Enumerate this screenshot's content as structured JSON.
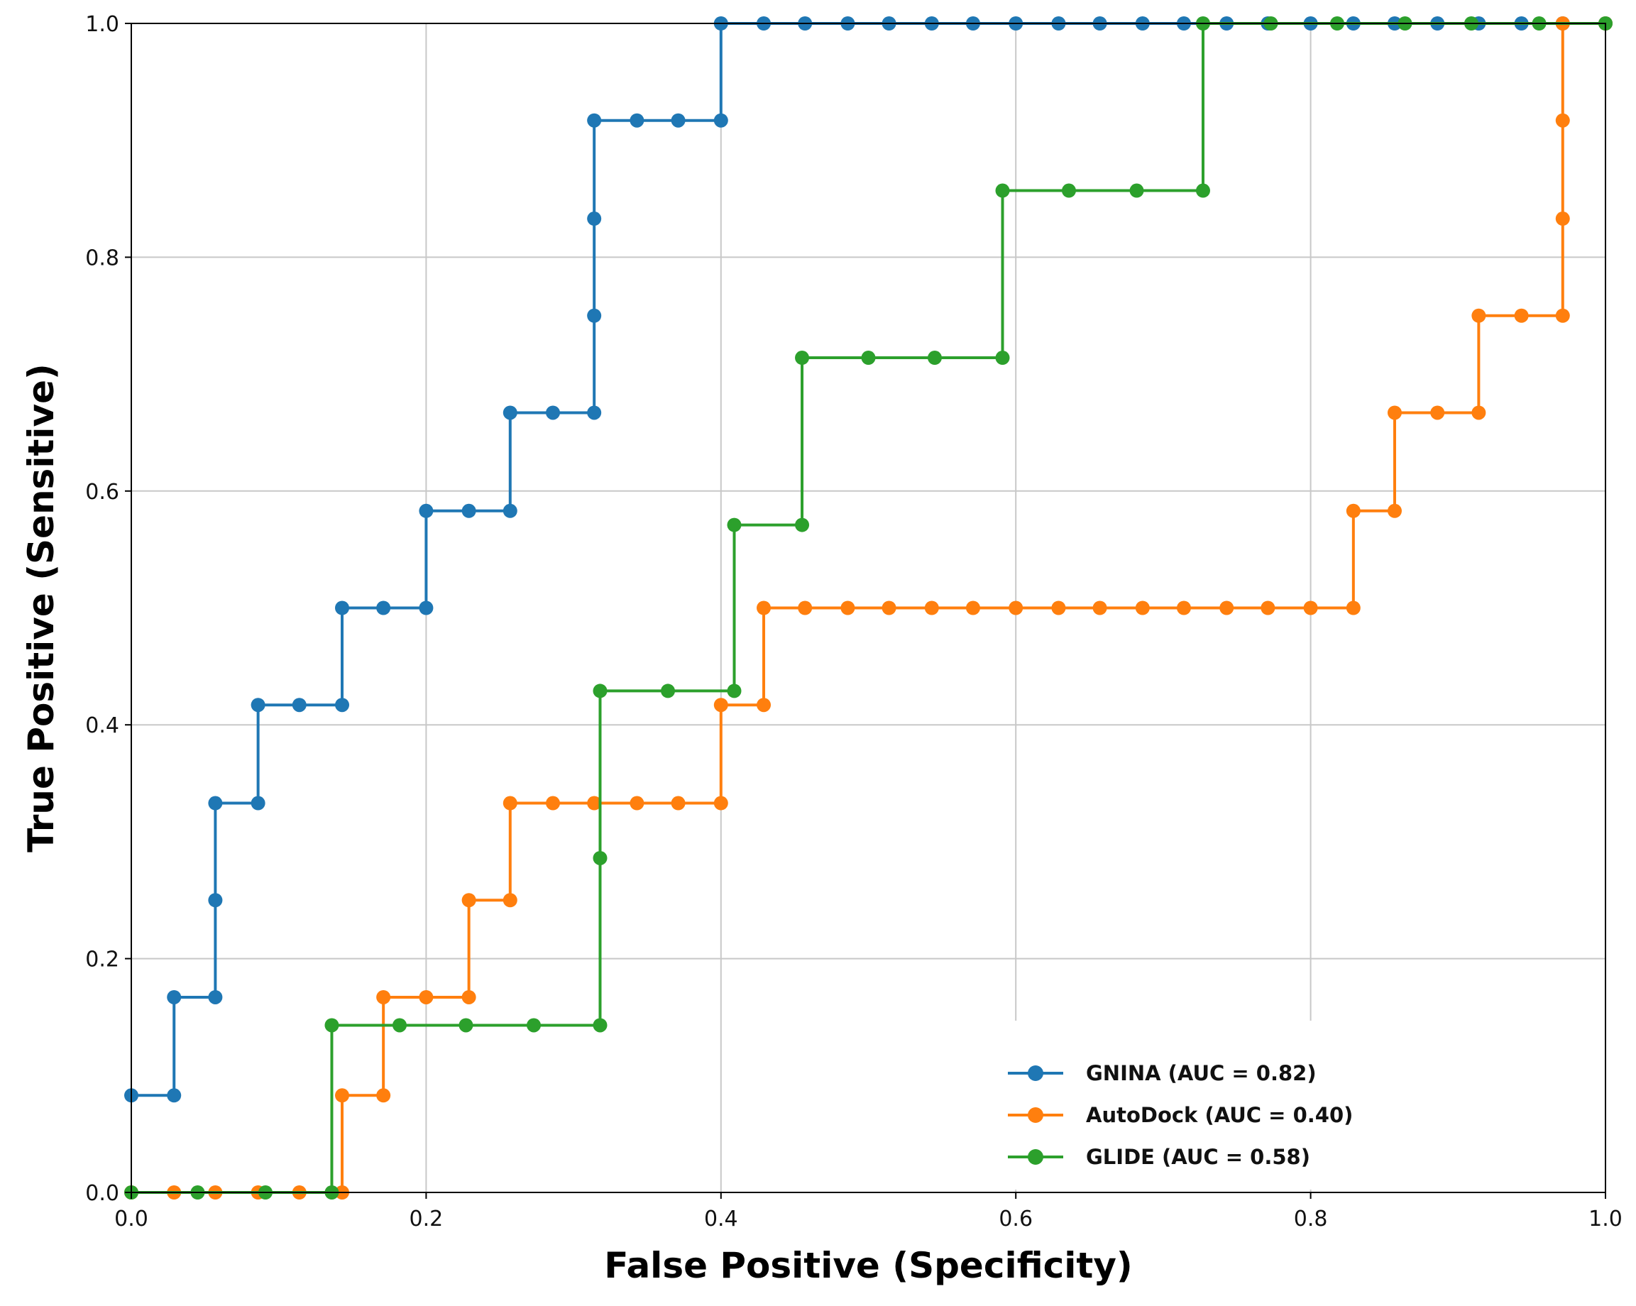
{
  "chart_data": {
    "type": "line",
    "title": "",
    "xlabel": "False  Positive (Specificity)",
    "ylabel": "True Positive (Sensitive)",
    "xlim": [
      0,
      1
    ],
    "ylim": [
      0,
      1
    ],
    "xticks": [
      "0.0",
      "0.2",
      "0.4",
      "0.6",
      "0.8",
      "1.0"
    ],
    "yticks": [
      "0.0",
      "0.2",
      "0.4",
      "0.6",
      "0.8",
      "1.0"
    ],
    "grid": true,
    "legend_position": "bottom-right",
    "series": [
      {
        "name": "GNINA  (AUC = 0.82)",
        "color": "#1f77b4",
        "points": [
          [
            0.0,
            0.083
          ],
          [
            0.029,
            0.083
          ],
          [
            0.029,
            0.167
          ],
          [
            0.057,
            0.167
          ],
          [
            0.057,
            0.25
          ],
          [
            0.057,
            0.333
          ],
          [
            0.086,
            0.333
          ],
          [
            0.086,
            0.417
          ],
          [
            0.114,
            0.417
          ],
          [
            0.143,
            0.417
          ],
          [
            0.143,
            0.5
          ],
          [
            0.171,
            0.5
          ],
          [
            0.2,
            0.5
          ],
          [
            0.2,
            0.583
          ],
          [
            0.229,
            0.583
          ],
          [
            0.257,
            0.583
          ],
          [
            0.257,
            0.667
          ],
          [
            0.286,
            0.667
          ],
          [
            0.314,
            0.667
          ],
          [
            0.314,
            0.75
          ],
          [
            0.314,
            0.833
          ],
          [
            0.314,
            0.917
          ],
          [
            0.343,
            0.917
          ],
          [
            0.371,
            0.917
          ],
          [
            0.4,
            0.917
          ],
          [
            0.4,
            1.0
          ],
          [
            0.429,
            1.0
          ],
          [
            0.457,
            1.0
          ],
          [
            0.486,
            1.0
          ],
          [
            0.514,
            1.0
          ],
          [
            0.543,
            1.0
          ],
          [
            0.571,
            1.0
          ],
          [
            0.6,
            1.0
          ],
          [
            0.629,
            1.0
          ],
          [
            0.657,
            1.0
          ],
          [
            0.686,
            1.0
          ],
          [
            0.714,
            1.0
          ],
          [
            0.743,
            1.0
          ],
          [
            0.771,
            1.0
          ],
          [
            0.8,
            1.0
          ],
          [
            0.829,
            1.0
          ],
          [
            0.857,
            1.0
          ],
          [
            0.886,
            1.0
          ],
          [
            0.914,
            1.0
          ],
          [
            0.943,
            1.0
          ],
          [
            0.971,
            1.0
          ],
          [
            1.0,
            1.0
          ]
        ]
      },
      {
        "name": "AutoDock (AUC = 0.40)",
        "color": "#ff7f0e",
        "points": [
          [
            0.0,
            0.0
          ],
          [
            0.029,
            0.0
          ],
          [
            0.057,
            0.0
          ],
          [
            0.086,
            0.0
          ],
          [
            0.114,
            0.0
          ],
          [
            0.143,
            0.0
          ],
          [
            0.143,
            0.083
          ],
          [
            0.171,
            0.083
          ],
          [
            0.171,
            0.167
          ],
          [
            0.2,
            0.167
          ],
          [
            0.229,
            0.167
          ],
          [
            0.229,
            0.25
          ],
          [
            0.257,
            0.25
          ],
          [
            0.257,
            0.333
          ],
          [
            0.286,
            0.333
          ],
          [
            0.314,
            0.333
          ],
          [
            0.343,
            0.333
          ],
          [
            0.371,
            0.333
          ],
          [
            0.4,
            0.333
          ],
          [
            0.4,
            0.417
          ],
          [
            0.429,
            0.417
          ],
          [
            0.429,
            0.5
          ],
          [
            0.457,
            0.5
          ],
          [
            0.486,
            0.5
          ],
          [
            0.514,
            0.5
          ],
          [
            0.543,
            0.5
          ],
          [
            0.571,
            0.5
          ],
          [
            0.6,
            0.5
          ],
          [
            0.629,
            0.5
          ],
          [
            0.657,
            0.5
          ],
          [
            0.686,
            0.5
          ],
          [
            0.714,
            0.5
          ],
          [
            0.743,
            0.5
          ],
          [
            0.771,
            0.5
          ],
          [
            0.8,
            0.5
          ],
          [
            0.829,
            0.5
          ],
          [
            0.829,
            0.583
          ],
          [
            0.857,
            0.583
          ],
          [
            0.857,
            0.667
          ],
          [
            0.886,
            0.667
          ],
          [
            0.914,
            0.667
          ],
          [
            0.914,
            0.75
          ],
          [
            0.943,
            0.75
          ],
          [
            0.971,
            0.75
          ],
          [
            0.971,
            0.833
          ],
          [
            0.971,
            0.917
          ],
          [
            0.971,
            1.0
          ],
          [
            1.0,
            1.0
          ]
        ]
      },
      {
        "name": "GLIDE (AUC = 0.58)",
        "color": "#2ca02c",
        "points": [
          [
            0.0,
            0.0
          ],
          [
            0.045,
            0.0
          ],
          [
            0.091,
            0.0
          ],
          [
            0.136,
            0.0
          ],
          [
            0.136,
            0.143
          ],
          [
            0.182,
            0.143
          ],
          [
            0.227,
            0.143
          ],
          [
            0.273,
            0.143
          ],
          [
            0.318,
            0.143
          ],
          [
            0.318,
            0.286
          ],
          [
            0.318,
            0.429
          ],
          [
            0.364,
            0.429
          ],
          [
            0.409,
            0.429
          ],
          [
            0.409,
            0.571
          ],
          [
            0.455,
            0.571
          ],
          [
            0.455,
            0.714
          ],
          [
            0.5,
            0.714
          ],
          [
            0.545,
            0.714
          ],
          [
            0.591,
            0.714
          ],
          [
            0.591,
            0.857
          ],
          [
            0.636,
            0.857
          ],
          [
            0.682,
            0.857
          ],
          [
            0.727,
            0.857
          ],
          [
            0.727,
            1.0
          ],
          [
            0.773,
            1.0
          ],
          [
            0.818,
            1.0
          ],
          [
            0.864,
            1.0
          ],
          [
            0.909,
            1.0
          ],
          [
            0.955,
            1.0
          ],
          [
            1.0,
            1.0
          ]
        ]
      }
    ]
  }
}
